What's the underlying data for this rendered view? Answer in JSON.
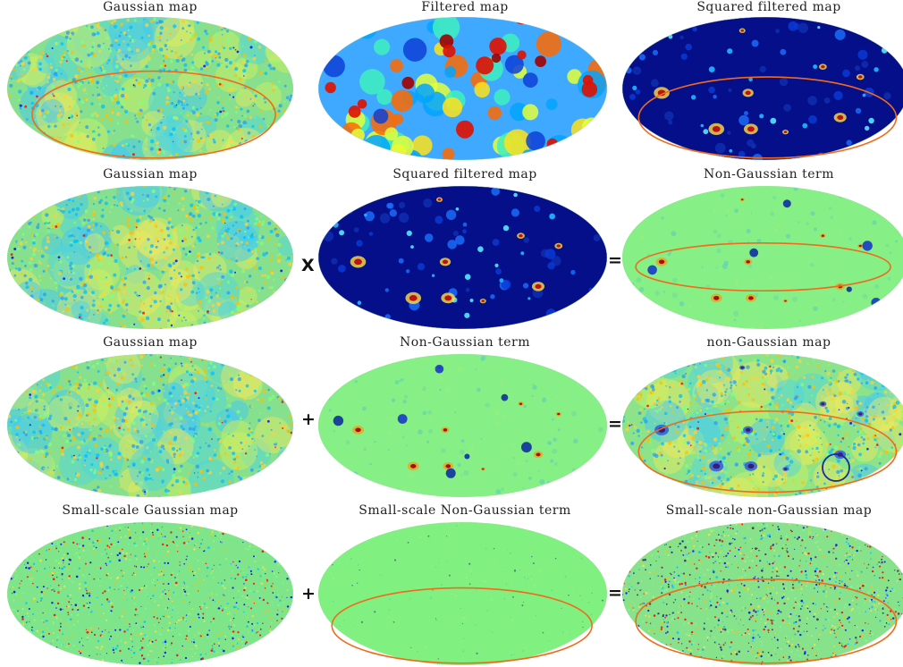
{
  "rows": [
    {
      "titles": [
        "Gaussian map",
        "Filtered map",
        "Squared filtered map"
      ],
      "operators": [
        "",
        ""
      ]
    },
    {
      "titles": [
        "Gaussian map",
        "Squared filtered map",
        "Non-Gaussian term"
      ],
      "operators": [
        "X",
        "="
      ]
    },
    {
      "titles": [
        "Gaussian map",
        "Non-Gaussian term",
        "non-Gaussian map"
      ],
      "operators": [
        "+",
        "="
      ]
    },
    {
      "titles": [
        "Small-scale Gaussian map",
        "Small-scale Non-Gaussian term",
        "Small-scale non-Gaussian map"
      ],
      "operators": [
        "+",
        "="
      ]
    }
  ],
  "map_types": [
    [
      "gaussian",
      "filtered",
      "squared"
    ],
    [
      "gaussian",
      "squared",
      "nongauss_term"
    ],
    [
      "gaussian",
      "nongauss_term",
      "nongauss_map"
    ],
    [
      "smallscale",
      "smallscale_term",
      "smallscale_map"
    ]
  ],
  "colormap": [
    "#00007f",
    "#0000ff",
    "#00bfff",
    "#80ff80",
    "#ffbf00",
    "#ff0000",
    "#7f0000"
  ],
  "annotation_colors": {
    "region_ellipse": "#f26a1b",
    "spot_circle": "#1a2a9e"
  }
}
